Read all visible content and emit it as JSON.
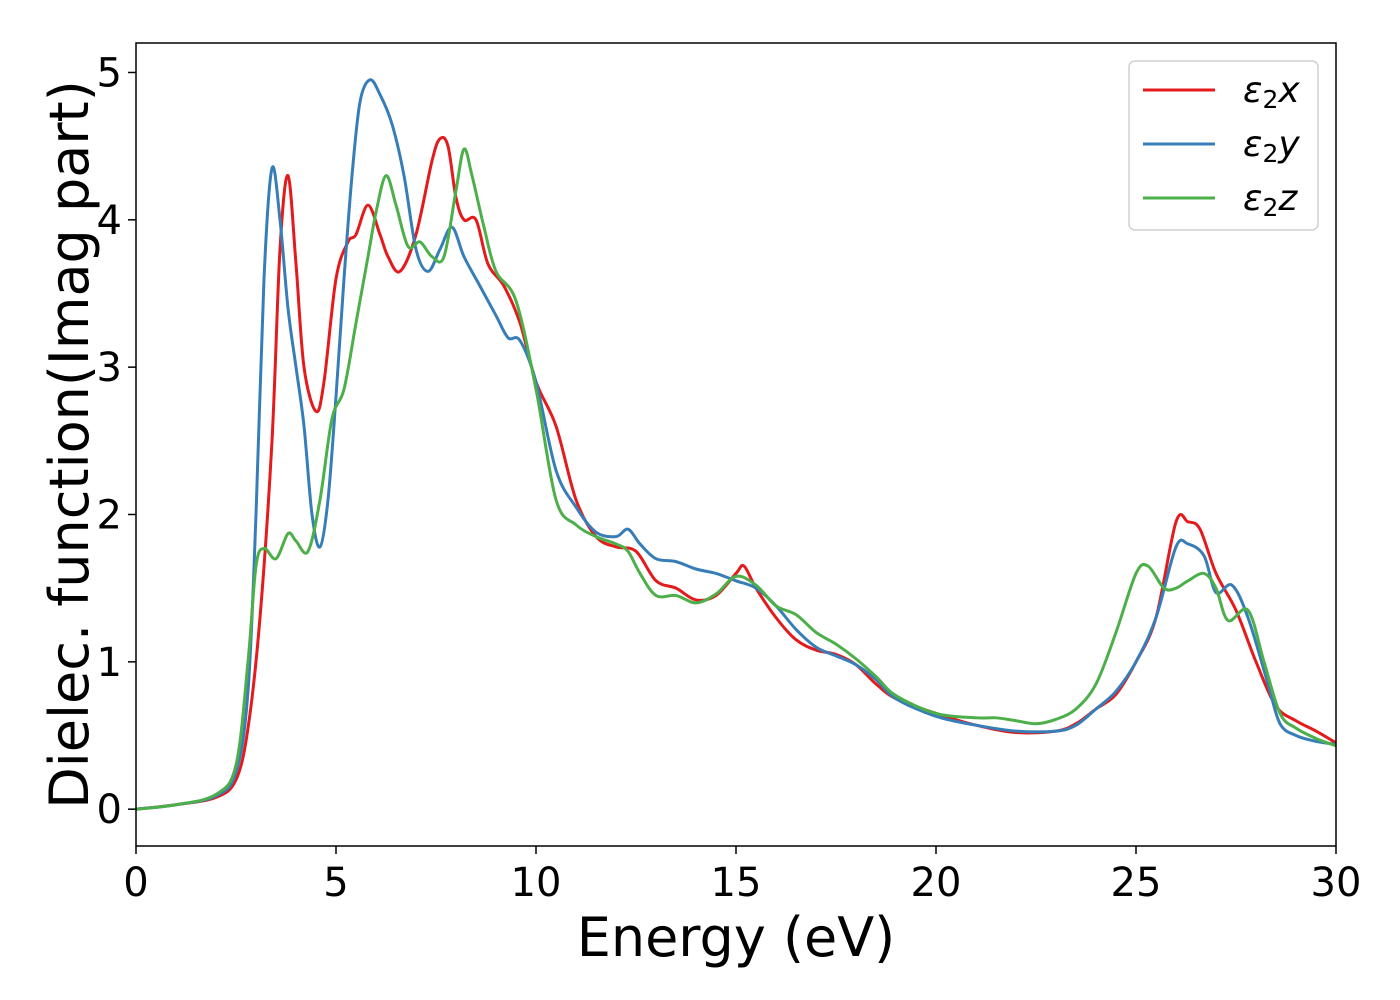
{
  "chart_data": {
    "type": "line",
    "xlabel": "Energy (eV)",
    "ylabel": "Dielec. function(Imag part)",
    "xlim": [
      0,
      30
    ],
    "ylim": [
      -0.25,
      5.2
    ],
    "xticks": [
      0,
      5,
      10,
      15,
      20,
      25,
      30
    ],
    "yticks": [
      0,
      1,
      2,
      3,
      4,
      5
    ],
    "grid": false,
    "legend_position": "top-right",
    "series": [
      {
        "name": "ε₂x",
        "legend_main": "ε",
        "legend_sub": "2",
        "legend_var": "x",
        "color": "#e41a1c",
        "points": [
          [
            0,
            0
          ],
          [
            1,
            0.03
          ],
          [
            2,
            0.08
          ],
          [
            2.5,
            0.2
          ],
          [
            2.8,
            0.55
          ],
          [
            3.1,
            1.3
          ],
          [
            3.4,
            2.5
          ],
          [
            3.6,
            3.8
          ],
          [
            3.8,
            4.3
          ],
          [
            4.0,
            3.7
          ],
          [
            4.2,
            3.0
          ],
          [
            4.5,
            2.7
          ],
          [
            4.7,
            2.9
          ],
          [
            5.0,
            3.6
          ],
          [
            5.3,
            3.85
          ],
          [
            5.5,
            3.9
          ],
          [
            5.8,
            4.1
          ],
          [
            6.1,
            3.9
          ],
          [
            6.3,
            3.75
          ],
          [
            6.6,
            3.65
          ],
          [
            7.0,
            3.9
          ],
          [
            7.4,
            4.4
          ],
          [
            7.6,
            4.55
          ],
          [
            7.8,
            4.5
          ],
          [
            8.0,
            4.15
          ],
          [
            8.2,
            4.0
          ],
          [
            8.5,
            4.0
          ],
          [
            8.8,
            3.7
          ],
          [
            9.2,
            3.55
          ],
          [
            9.6,
            3.3
          ],
          [
            10.0,
            2.9
          ],
          [
            10.5,
            2.6
          ],
          [
            11.0,
            2.1
          ],
          [
            11.5,
            1.85
          ],
          [
            12.0,
            1.78
          ],
          [
            12.5,
            1.75
          ],
          [
            13.0,
            1.55
          ],
          [
            13.5,
            1.5
          ],
          [
            14.0,
            1.42
          ],
          [
            14.5,
            1.45
          ],
          [
            15.0,
            1.6
          ],
          [
            15.2,
            1.65
          ],
          [
            15.5,
            1.5
          ],
          [
            16.0,
            1.3
          ],
          [
            16.5,
            1.15
          ],
          [
            17.0,
            1.08
          ],
          [
            17.5,
            1.05
          ],
          [
            18.0,
            0.98
          ],
          [
            18.5,
            0.85
          ],
          [
            19.0,
            0.75
          ],
          [
            20.0,
            0.65
          ],
          [
            21.0,
            0.57
          ],
          [
            22.0,
            0.52
          ],
          [
            23.0,
            0.53
          ],
          [
            23.5,
            0.58
          ],
          [
            24.0,
            0.68
          ],
          [
            24.5,
            0.78
          ],
          [
            25.0,
            1.0
          ],
          [
            25.5,
            1.3
          ],
          [
            26.0,
            1.95
          ],
          [
            26.3,
            1.95
          ],
          [
            26.6,
            1.9
          ],
          [
            27.0,
            1.6
          ],
          [
            27.5,
            1.35
          ],
          [
            28.0,
            1.0
          ],
          [
            28.5,
            0.7
          ],
          [
            29.0,
            0.6
          ],
          [
            29.5,
            0.53
          ],
          [
            30.0,
            0.45
          ]
        ]
      },
      {
        "name": "ε₂y",
        "legend_main": "ε",
        "legend_sub": "2",
        "legend_var": "y",
        "color": "#377eb8",
        "points": [
          [
            0,
            0
          ],
          [
            1,
            0.03
          ],
          [
            2,
            0.09
          ],
          [
            2.5,
            0.25
          ],
          [
            2.8,
            0.8
          ],
          [
            3.0,
            2.0
          ],
          [
            3.2,
            3.6
          ],
          [
            3.4,
            4.35
          ],
          [
            3.6,
            4.0
          ],
          [
            3.8,
            3.4
          ],
          [
            4.0,
            3.0
          ],
          [
            4.2,
            2.6
          ],
          [
            4.4,
            2.0
          ],
          [
            4.6,
            1.78
          ],
          [
            4.8,
            2.1
          ],
          [
            5.0,
            2.8
          ],
          [
            5.2,
            3.6
          ],
          [
            5.4,
            4.3
          ],
          [
            5.6,
            4.8
          ],
          [
            5.85,
            4.95
          ],
          [
            6.1,
            4.85
          ],
          [
            6.4,
            4.65
          ],
          [
            6.7,
            4.3
          ],
          [
            7.0,
            3.8
          ],
          [
            7.3,
            3.65
          ],
          [
            7.6,
            3.8
          ],
          [
            7.9,
            3.95
          ],
          [
            8.2,
            3.75
          ],
          [
            8.6,
            3.55
          ],
          [
            9.0,
            3.35
          ],
          [
            9.3,
            3.2
          ],
          [
            9.6,
            3.18
          ],
          [
            10.0,
            2.9
          ],
          [
            10.5,
            2.3
          ],
          [
            11.0,
            2.05
          ],
          [
            11.5,
            1.88
          ],
          [
            12.0,
            1.85
          ],
          [
            12.3,
            1.9
          ],
          [
            12.6,
            1.8
          ],
          [
            13.0,
            1.7
          ],
          [
            13.5,
            1.68
          ],
          [
            14.0,
            1.63
          ],
          [
            14.5,
            1.6
          ],
          [
            15.0,
            1.55
          ],
          [
            15.5,
            1.5
          ],
          [
            16.0,
            1.38
          ],
          [
            16.5,
            1.22
          ],
          [
            17.0,
            1.1
          ],
          [
            17.5,
            1.04
          ],
          [
            18.0,
            0.98
          ],
          [
            18.5,
            0.88
          ],
          [
            19.0,
            0.75
          ],
          [
            20.0,
            0.63
          ],
          [
            21.0,
            0.57
          ],
          [
            22.0,
            0.53
          ],
          [
            23.0,
            0.53
          ],
          [
            23.5,
            0.57
          ],
          [
            24.0,
            0.68
          ],
          [
            24.5,
            0.8
          ],
          [
            25.0,
            1.0
          ],
          [
            25.5,
            1.3
          ],
          [
            26.0,
            1.78
          ],
          [
            26.3,
            1.8
          ],
          [
            26.7,
            1.72
          ],
          [
            27.0,
            1.47
          ],
          [
            27.4,
            1.52
          ],
          [
            27.8,
            1.3
          ],
          [
            28.3,
            0.85
          ],
          [
            28.6,
            0.58
          ],
          [
            29.0,
            0.5
          ],
          [
            29.5,
            0.46
          ],
          [
            30.0,
            0.44
          ]
        ]
      },
      {
        "name": "ε₂z",
        "legend_main": "ε",
        "legend_sub": "2",
        "legend_var": "z",
        "color": "#4daf4a",
        "points": [
          [
            0,
            0
          ],
          [
            1,
            0.03
          ],
          [
            2,
            0.1
          ],
          [
            2.5,
            0.3
          ],
          [
            2.8,
            1.0
          ],
          [
            3.0,
            1.65
          ],
          [
            3.2,
            1.77
          ],
          [
            3.5,
            1.7
          ],
          [
            3.8,
            1.87
          ],
          [
            4.0,
            1.82
          ],
          [
            4.3,
            1.75
          ],
          [
            4.6,
            2.1
          ],
          [
            4.9,
            2.65
          ],
          [
            5.2,
            2.85
          ],
          [
            5.5,
            3.3
          ],
          [
            5.8,
            3.75
          ],
          [
            6.0,
            4.05
          ],
          [
            6.25,
            4.3
          ],
          [
            6.5,
            4.1
          ],
          [
            6.8,
            3.82
          ],
          [
            7.1,
            3.85
          ],
          [
            7.4,
            3.75
          ],
          [
            7.7,
            3.75
          ],
          [
            8.0,
            4.2
          ],
          [
            8.2,
            4.48
          ],
          [
            8.4,
            4.3
          ],
          [
            8.7,
            3.95
          ],
          [
            9.0,
            3.65
          ],
          [
            9.5,
            3.45
          ],
          [
            10.0,
            2.85
          ],
          [
            10.5,
            2.1
          ],
          [
            11.0,
            1.93
          ],
          [
            11.5,
            1.85
          ],
          [
            12.0,
            1.8
          ],
          [
            12.3,
            1.75
          ],
          [
            12.6,
            1.6
          ],
          [
            13.0,
            1.45
          ],
          [
            13.5,
            1.45
          ],
          [
            14.0,
            1.4
          ],
          [
            14.5,
            1.46
          ],
          [
            15.0,
            1.58
          ],
          [
            15.5,
            1.52
          ],
          [
            16.0,
            1.38
          ],
          [
            16.5,
            1.32
          ],
          [
            17.0,
            1.2
          ],
          [
            17.5,
            1.12
          ],
          [
            18.0,
            1.02
          ],
          [
            18.5,
            0.9
          ],
          [
            19.0,
            0.77
          ],
          [
            20.0,
            0.65
          ],
          [
            21.0,
            0.62
          ],
          [
            21.5,
            0.62
          ],
          [
            22.0,
            0.6
          ],
          [
            22.5,
            0.58
          ],
          [
            23.0,
            0.61
          ],
          [
            23.5,
            0.68
          ],
          [
            24.0,
            0.85
          ],
          [
            24.5,
            1.2
          ],
          [
            25.0,
            1.6
          ],
          [
            25.3,
            1.65
          ],
          [
            25.7,
            1.5
          ],
          [
            26.0,
            1.5
          ],
          [
            26.3,
            1.55
          ],
          [
            26.7,
            1.6
          ],
          [
            27.0,
            1.5
          ],
          [
            27.3,
            1.28
          ],
          [
            27.8,
            1.35
          ],
          [
            28.2,
            1.0
          ],
          [
            28.6,
            0.65
          ],
          [
            29.0,
            0.55
          ],
          [
            29.5,
            0.48
          ],
          [
            30.0,
            0.43
          ]
        ]
      }
    ]
  }
}
